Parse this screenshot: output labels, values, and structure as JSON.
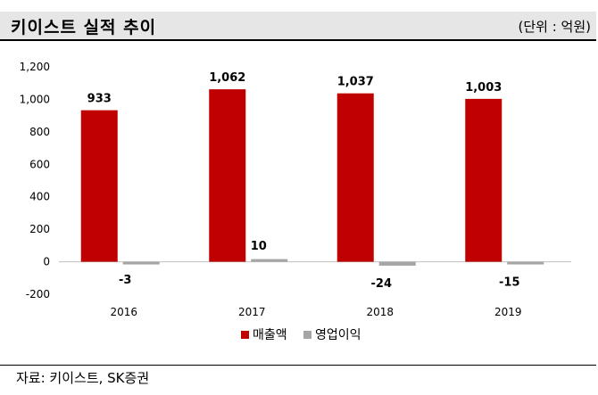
{
  "header": {
    "title": "키이스트 실적 추이",
    "unit": "(단위 : 억원)"
  },
  "footer": {
    "source": "자료: 키이스트, SK증권"
  },
  "chart_data": {
    "type": "bar",
    "categories": [
      "2016",
      "2017",
      "2018",
      "2019"
    ],
    "series": [
      {
        "name": "매출액",
        "values": [
          933,
          1062,
          1037,
          1003
        ],
        "color": "#c00000"
      },
      {
        "name": "영업이익",
        "values": [
          -3,
          10,
          -24,
          -15
        ],
        "color": "#a6a6a6"
      }
    ],
    "ylim": [
      -200,
      1200
    ],
    "yticks": [
      -200,
      0,
      200,
      400,
      600,
      800,
      1000,
      1200
    ],
    "grid": false,
    "legend": "bottom"
  }
}
